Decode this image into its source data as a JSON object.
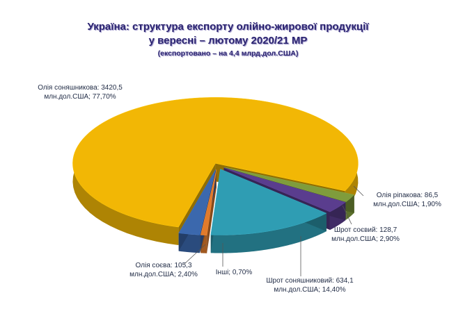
{
  "chart_data": {
    "type": "pie",
    "title": [
      "Україна: структура експорту олійно-жирової продукції",
      "у вересні – лютому 2020/21 МР"
    ],
    "subtitle": "(експортовано – на 4,4 млрд.дол.США)",
    "values": [
      77.7,
      1.9,
      2.9,
      14.4,
      0.7,
      2.4
    ],
    "value_labels": [
      "Олія соняшникова: 3420,5 млн.дол.США; 77,70%",
      "Олія ріпакова: 86,5 млн.дол.США; 1,90%",
      "Шрот соєвий: 128,7 млн.дол.США; 2,90%",
      "Шрот соняшниковий: 634,1 млн.дол.США; 14,40%",
      "Інші; 0,70%",
      "Олія соєва: 105,3 млн.дол.США; 2,40%"
    ],
    "colors": [
      "#f2b705",
      "#7f9c3c",
      "#5a3d8e",
      "#2f9db3",
      "#e07b2c",
      "#3b68ad"
    ]
  }
}
